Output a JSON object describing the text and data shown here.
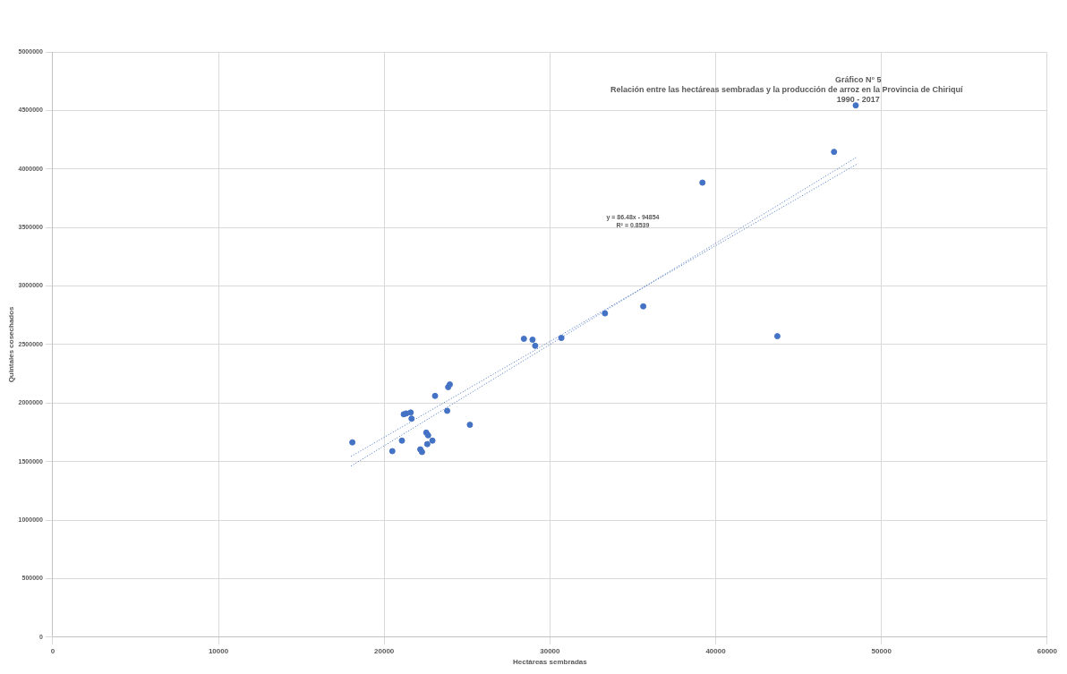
{
  "chart_data": {
    "type": "scatter",
    "title": "Gráfico N° 5",
    "subtitle": "Relación entre las hectáreas sembradas y la producción de arroz en la Provincia de Chiriquí",
    "xlabel": "Hectáreas sembradas",
    "ylabel": "Quintales cosechados",
    "annotations": [
      "1990 - 2017",
      "y = 86.48x - 94854",
      "R² = 0.8539"
    ],
    "series": [
      {
        "color": "#4472c4",
        "x": [
          18080,
          20490,
          21070,
          21180,
          21330,
          21600,
          21650,
          22180,
          22280,
          22540,
          22650,
          22600,
          22910,
          23070,
          23800,
          23860,
          23960,
          25170,
          28430,
          28950,
          29110,
          30690,
          33320,
          35630,
          39200,
          43720,
          47140,
          48450
        ],
        "values": [
          1664000,
          1589000,
          1679000,
          1904000,
          1911000,
          1919000,
          1867000,
          1604000,
          1582000,
          1747000,
          1724000,
          1649000,
          1679000,
          2061000,
          1934000,
          2136000,
          2159000,
          1814000,
          2549000,
          2541000,
          2489000,
          2556000,
          2766000,
          2826000,
          3883000,
          2571000,
          4146000,
          4543000
        ]
      },
      {
        "type": "line",
        "color": "#4472c4",
        "line_style": "dotted",
        "marker": "none",
        "x": [
          18000,
          48500
        ],
        "values": [
          1462000,
          4100000
        ]
      },
      {
        "type": "line",
        "color": "#4472c4",
        "line_style": "dotted",
        "marker": "none",
        "x": [
          18000,
          48500
        ],
        "values": [
          1544000,
          4040000
        ]
      }
    ],
    "marker": "circle",
    "xlim": [
      0,
      60000
    ],
    "xticks": [
      0,
      10000,
      20000,
      30000,
      40000,
      50000,
      60000
    ],
    "ylim": [
      0,
      5000000
    ],
    "yticks": [
      0,
      500000,
      1000000,
      1500000,
      2000000,
      2500000,
      3000000,
      3500000,
      4000000,
      4500000,
      5000000
    ],
    "grid": true,
    "legend": false
  }
}
